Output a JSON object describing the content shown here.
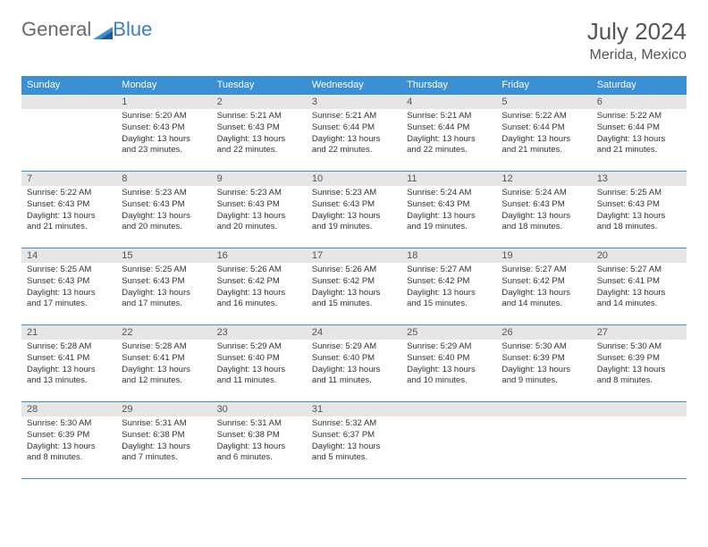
{
  "branding": {
    "word1": "General",
    "word2": "Blue",
    "logo_colors": {
      "triangle": "#3b8fd4",
      "accent": "#1e5a96"
    }
  },
  "title": "July 2024",
  "location": "Merida, Mexico",
  "colors": {
    "header_bg": "#3b8fd4",
    "header_text": "#ffffff",
    "daynum_bg": "#e6e6e6",
    "text": "#333333",
    "border": "#3b8fd4"
  },
  "day_headers": [
    "Sunday",
    "Monday",
    "Tuesday",
    "Wednesday",
    "Thursday",
    "Friday",
    "Saturday"
  ],
  "weeks": [
    [
      {
        "num": "",
        "lines": []
      },
      {
        "num": "1",
        "lines": [
          "Sunrise: 5:20 AM",
          "Sunset: 6:43 PM",
          "Daylight: 13 hours",
          "and 23 minutes."
        ]
      },
      {
        "num": "2",
        "lines": [
          "Sunrise: 5:21 AM",
          "Sunset: 6:43 PM",
          "Daylight: 13 hours",
          "and 22 minutes."
        ]
      },
      {
        "num": "3",
        "lines": [
          "Sunrise: 5:21 AM",
          "Sunset: 6:44 PM",
          "Daylight: 13 hours",
          "and 22 minutes."
        ]
      },
      {
        "num": "4",
        "lines": [
          "Sunrise: 5:21 AM",
          "Sunset: 6:44 PM",
          "Daylight: 13 hours",
          "and 22 minutes."
        ]
      },
      {
        "num": "5",
        "lines": [
          "Sunrise: 5:22 AM",
          "Sunset: 6:44 PM",
          "Daylight: 13 hours",
          "and 21 minutes."
        ]
      },
      {
        "num": "6",
        "lines": [
          "Sunrise: 5:22 AM",
          "Sunset: 6:44 PM",
          "Daylight: 13 hours",
          "and 21 minutes."
        ]
      }
    ],
    [
      {
        "num": "7",
        "lines": [
          "Sunrise: 5:22 AM",
          "Sunset: 6:43 PM",
          "Daylight: 13 hours",
          "and 21 minutes."
        ]
      },
      {
        "num": "8",
        "lines": [
          "Sunrise: 5:23 AM",
          "Sunset: 6:43 PM",
          "Daylight: 13 hours",
          "and 20 minutes."
        ]
      },
      {
        "num": "9",
        "lines": [
          "Sunrise: 5:23 AM",
          "Sunset: 6:43 PM",
          "Daylight: 13 hours",
          "and 20 minutes."
        ]
      },
      {
        "num": "10",
        "lines": [
          "Sunrise: 5:23 AM",
          "Sunset: 6:43 PM",
          "Daylight: 13 hours",
          "and 19 minutes."
        ]
      },
      {
        "num": "11",
        "lines": [
          "Sunrise: 5:24 AM",
          "Sunset: 6:43 PM",
          "Daylight: 13 hours",
          "and 19 minutes."
        ]
      },
      {
        "num": "12",
        "lines": [
          "Sunrise: 5:24 AM",
          "Sunset: 6:43 PM",
          "Daylight: 13 hours",
          "and 18 minutes."
        ]
      },
      {
        "num": "13",
        "lines": [
          "Sunrise: 5:25 AM",
          "Sunset: 6:43 PM",
          "Daylight: 13 hours",
          "and 18 minutes."
        ]
      }
    ],
    [
      {
        "num": "14",
        "lines": [
          "Sunrise: 5:25 AM",
          "Sunset: 6:43 PM",
          "Daylight: 13 hours",
          "and 17 minutes."
        ]
      },
      {
        "num": "15",
        "lines": [
          "Sunrise: 5:25 AM",
          "Sunset: 6:43 PM",
          "Daylight: 13 hours",
          "and 17 minutes."
        ]
      },
      {
        "num": "16",
        "lines": [
          "Sunrise: 5:26 AM",
          "Sunset: 6:42 PM",
          "Daylight: 13 hours",
          "and 16 minutes."
        ]
      },
      {
        "num": "17",
        "lines": [
          "Sunrise: 5:26 AM",
          "Sunset: 6:42 PM",
          "Daylight: 13 hours",
          "and 15 minutes."
        ]
      },
      {
        "num": "18",
        "lines": [
          "Sunrise: 5:27 AM",
          "Sunset: 6:42 PM",
          "Daylight: 13 hours",
          "and 15 minutes."
        ]
      },
      {
        "num": "19",
        "lines": [
          "Sunrise: 5:27 AM",
          "Sunset: 6:42 PM",
          "Daylight: 13 hours",
          "and 14 minutes."
        ]
      },
      {
        "num": "20",
        "lines": [
          "Sunrise: 5:27 AM",
          "Sunset: 6:41 PM",
          "Daylight: 13 hours",
          "and 14 minutes."
        ]
      }
    ],
    [
      {
        "num": "21",
        "lines": [
          "Sunrise: 5:28 AM",
          "Sunset: 6:41 PM",
          "Daylight: 13 hours",
          "and 13 minutes."
        ]
      },
      {
        "num": "22",
        "lines": [
          "Sunrise: 5:28 AM",
          "Sunset: 6:41 PM",
          "Daylight: 13 hours",
          "and 12 minutes."
        ]
      },
      {
        "num": "23",
        "lines": [
          "Sunrise: 5:29 AM",
          "Sunset: 6:40 PM",
          "Daylight: 13 hours",
          "and 11 minutes."
        ]
      },
      {
        "num": "24",
        "lines": [
          "Sunrise: 5:29 AM",
          "Sunset: 6:40 PM",
          "Daylight: 13 hours",
          "and 11 minutes."
        ]
      },
      {
        "num": "25",
        "lines": [
          "Sunrise: 5:29 AM",
          "Sunset: 6:40 PM",
          "Daylight: 13 hours",
          "and 10 minutes."
        ]
      },
      {
        "num": "26",
        "lines": [
          "Sunrise: 5:30 AM",
          "Sunset: 6:39 PM",
          "Daylight: 13 hours",
          "and 9 minutes."
        ]
      },
      {
        "num": "27",
        "lines": [
          "Sunrise: 5:30 AM",
          "Sunset: 6:39 PM",
          "Daylight: 13 hours",
          "and 8 minutes."
        ]
      }
    ],
    [
      {
        "num": "28",
        "lines": [
          "Sunrise: 5:30 AM",
          "Sunset: 6:39 PM",
          "Daylight: 13 hours",
          "and 8 minutes."
        ]
      },
      {
        "num": "29",
        "lines": [
          "Sunrise: 5:31 AM",
          "Sunset: 6:38 PM",
          "Daylight: 13 hours",
          "and 7 minutes."
        ]
      },
      {
        "num": "30",
        "lines": [
          "Sunrise: 5:31 AM",
          "Sunset: 6:38 PM",
          "Daylight: 13 hours",
          "and 6 minutes."
        ]
      },
      {
        "num": "31",
        "lines": [
          "Sunrise: 5:32 AM",
          "Sunset: 6:37 PM",
          "Daylight: 13 hours",
          "and 5 minutes."
        ]
      },
      {
        "num": "",
        "lines": []
      },
      {
        "num": "",
        "lines": []
      },
      {
        "num": "",
        "lines": []
      }
    ]
  ]
}
